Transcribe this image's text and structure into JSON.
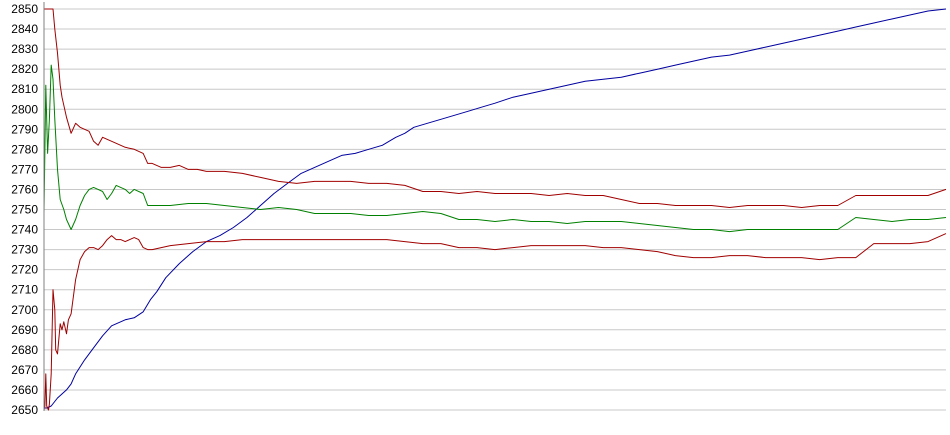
{
  "chart_data": {
    "type": "line",
    "title": "",
    "xlabel": "",
    "ylabel": "",
    "ylim": [
      2650,
      2850
    ],
    "xlim": [
      0,
      1000
    ],
    "grid": true,
    "legend": "none",
    "y_ticks": [
      2650,
      2660,
      2670,
      2680,
      2690,
      2700,
      2710,
      2720,
      2730,
      2740,
      2750,
      2760,
      2770,
      2780,
      2790,
      2800,
      2810,
      2820,
      2830,
      2840,
      2850
    ],
    "series": [
      {
        "color": "#0000a0",
        "x": [
          0,
          3,
          8,
          15,
          25,
          30,
          35,
          45,
          55,
          65,
          75,
          90,
          100,
          110,
          118,
          125,
          135,
          150,
          165,
          180,
          195,
          210,
          225,
          240,
          255,
          270,
          285,
          300,
          315,
          330,
          345,
          360,
          375,
          390,
          400,
          410,
          425,
          440,
          455,
          470,
          485,
          500,
          520,
          540,
          560,
          580,
          600,
          620,
          640,
          660,
          680,
          700,
          720,
          740,
          760,
          780,
          800,
          820,
          840,
          860,
          880,
          900,
          920,
          940,
          960,
          980,
          1000
        ],
        "y": [
          2651,
          2651,
          2652,
          2656,
          2660,
          2663,
          2668,
          2675,
          2681,
          2687,
          2692,
          2695,
          2696,
          2699,
          2705,
          2709,
          2716,
          2723,
          2729,
          2734,
          2737,
          2741,
          2746,
          2752,
          2758,
          2763,
          2768,
          2771,
          2774,
          2777,
          2778,
          2780,
          2782,
          2786,
          2788,
          2791,
          2793,
          2795,
          2797,
          2799,
          2801,
          2803,
          2806,
          2808,
          2810,
          2812,
          2814,
          2815,
          2816,
          2818,
          2820,
          2822,
          2824,
          2826,
          2827,
          2829,
          2831,
          2833,
          2835,
          2837,
          2839,
          2841,
          2843,
          2845,
          2847,
          2849,
          2850
        ]
      },
      {
        "color": "#a00000",
        "x": [
          0,
          5,
          10,
          12,
          15,
          18,
          20,
          25,
          30,
          35,
          40,
          45,
          50,
          55,
          60,
          65,
          70,
          80,
          90,
          100,
          110,
          115,
          120,
          130,
          140,
          150,
          160,
          170,
          180,
          200,
          220,
          240,
          260,
          280,
          300,
          320,
          340,
          360,
          380,
          400,
          420,
          440,
          460,
          480,
          500,
          520,
          540,
          560,
          580,
          600,
          620,
          640,
          660,
          680,
          700,
          720,
          740,
          760,
          780,
          800,
          820,
          840,
          860,
          880,
          900,
          920,
          940,
          960,
          980,
          1000
        ],
        "y": [
          2850,
          2850,
          2850,
          2840,
          2828,
          2812,
          2806,
          2796,
          2788,
          2793,
          2791,
          2790,
          2789,
          2784,
          2782,
          2786,
          2785,
          2783,
          2781,
          2780,
          2778,
          2773,
          2773,
          2771,
          2771,
          2772,
          2770,
          2770,
          2769,
          2769,
          2768,
          2766,
          2764,
          2763,
          2764,
          2764,
          2764,
          2763,
          2763,
          2762,
          2759,
          2759,
          2758,
          2759,
          2758,
          2758,
          2758,
          2757,
          2758,
          2757,
          2757,
          2755,
          2753,
          2753,
          2752,
          2752,
          2752,
          2751,
          2752,
          2752,
          2752,
          2751,
          2752,
          2752,
          2757,
          2757,
          2757,
          2757,
          2757,
          2760
        ]
      },
      {
        "color": "#008000",
        "x": [
          0,
          2,
          4,
          6,
          8,
          10,
          12,
          15,
          18,
          22,
          25,
          30,
          35,
          40,
          45,
          50,
          55,
          60,
          65,
          70,
          75,
          80,
          85,
          90,
          95,
          100,
          110,
          115,
          120,
          140,
          160,
          180,
          200,
          220,
          240,
          260,
          280,
          300,
          320,
          340,
          360,
          380,
          400,
          420,
          440,
          460,
          480,
          500,
          520,
          540,
          560,
          580,
          600,
          620,
          640,
          660,
          680,
          700,
          720,
          740,
          760,
          780,
          800,
          820,
          840,
          860,
          880,
          900,
          920,
          940,
          960,
          980,
          1000
        ],
        "y": [
          2748,
          2812,
          2778,
          2795,
          2822,
          2815,
          2795,
          2770,
          2755,
          2750,
          2745,
          2740,
          2745,
          2752,
          2757,
          2760,
          2761,
          2760,
          2759,
          2755,
          2758,
          2762,
          2761,
          2760,
          2758,
          2760,
          2758,
          2752,
          2752,
          2752,
          2753,
          2753,
          2752,
          2751,
          2750,
          2751,
          2750,
          2748,
          2748,
          2748,
          2747,
          2747,
          2748,
          2749,
          2748,
          2745,
          2745,
          2744,
          2745,
          2744,
          2744,
          2743,
          2744,
          2744,
          2744,
          2743,
          2742,
          2741,
          2740,
          2740,
          2739,
          2740,
          2740,
          2740,
          2740,
          2740,
          2740,
          2746,
          2745,
          2744,
          2745,
          2745,
          2746
        ]
      },
      {
        "color": "#a00000",
        "x": [
          0,
          1,
          2,
          3,
          5,
          6,
          8,
          10,
          12,
          13,
          15,
          18,
          20,
          22,
          25,
          27,
          30,
          35,
          40,
          45,
          50,
          55,
          60,
          65,
          70,
          75,
          80,
          85,
          90,
          95,
          100,
          105,
          110,
          115,
          120,
          140,
          160,
          180,
          200,
          220,
          240,
          260,
          280,
          300,
          320,
          340,
          360,
          380,
          400,
          420,
          440,
          460,
          480,
          500,
          520,
          540,
          560,
          580,
          600,
          620,
          640,
          660,
          680,
          700,
          720,
          740,
          760,
          780,
          800,
          820,
          840,
          860,
          880,
          900,
          920,
          940,
          960,
          980,
          1000
        ],
        "y": [
          2650,
          2652,
          2668,
          2652,
          2650,
          2653,
          2668,
          2710,
          2700,
          2680,
          2678,
          2693,
          2690,
          2694,
          2688,
          2695,
          2698,
          2715,
          2725,
          2729,
          2731,
          2731,
          2730,
          2732,
          2735,
          2737,
          2735,
          2735,
          2734,
          2735,
          2736,
          2735,
          2731,
          2730,
          2730,
          2732,
          2733,
          2734,
          2734,
          2735,
          2735,
          2735,
          2735,
          2735,
          2735,
          2735,
          2735,
          2735,
          2734,
          2733,
          2733,
          2731,
          2731,
          2730,
          2731,
          2732,
          2732,
          2732,
          2732,
          2731,
          2731,
          2730,
          2729,
          2727,
          2726,
          2726,
          2727,
          2727,
          2726,
          2726,
          2726,
          2725,
          2726,
          2726,
          2733,
          2733,
          2733,
          2734,
          2738
        ]
      }
    ]
  }
}
